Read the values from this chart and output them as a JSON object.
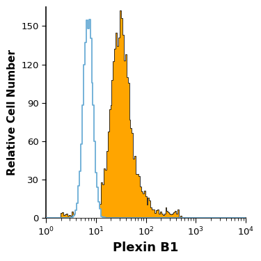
{
  "title": "",
  "xlabel": "Plexin B1",
  "ylabel": "Relative Cell Number",
  "xlabel_fontsize": 13,
  "ylabel_fontsize": 11,
  "xmin": 1,
  "xmax": 10000,
  "ymin": 0,
  "ymax": 165,
  "yticks": [
    0,
    30,
    60,
    90,
    120,
    150
  ],
  "isotype_color": "#6aadd5",
  "antibody_fill_color": "#FFA500",
  "antibody_edge_color": "#1a1a1a",
  "isotype_peak_x": 7.0,
  "isotype_peak_y": 155,
  "antibody_peak_x": 30.0,
  "antibody_peak_y": 162,
  "background_color": "#ffffff",
  "isotype_sigma": 0.22,
  "antibody_sigma": 0.4
}
